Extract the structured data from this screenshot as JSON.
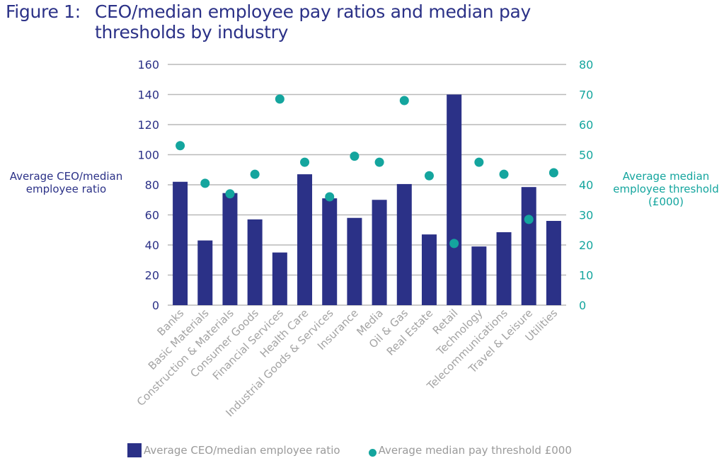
{
  "figure_label": "Figure 1:",
  "title_line1": "CEO/median employee pay ratios and median pay",
  "title_line2": "thresholds by industry",
  "chart_data": {
    "type": "bar+scatter",
    "title": "CEO/median employee pay ratios and median pay thresholds by industry",
    "categories": [
      "Banks",
      "Basic Materials",
      "Construction & Materials",
      "Consumer Goods",
      "Financial Services",
      "Health Care",
      "Industrial Goods & Services",
      "Insurance",
      "Media",
      "Oil & Gas",
      "Real Estate",
      "Retail",
      "Technology",
      "Telecommunications",
      "Travel & Leisure",
      "Utilities"
    ],
    "series": [
      {
        "name": "Average CEO/median employee ratio",
        "type": "bar",
        "axis": "left",
        "color": "#2b3187",
        "values": [
          82,
          43,
          74.5,
          57,
          35,
          87,
          71,
          58,
          70,
          80.5,
          47,
          140,
          39,
          48.5,
          78.5,
          56
        ]
      },
      {
        "name": "Average median pay threshold £000",
        "type": "scatter",
        "axis": "right",
        "color": "#14a59e",
        "values": [
          53,
          40.5,
          37,
          43.5,
          68.5,
          47.5,
          36,
          49.5,
          47.5,
          68,
          43,
          20.5,
          47.5,
          43.5,
          28.5,
          44
        ]
      }
    ],
    "ylabel_left": "Average CEO/median employee ratio",
    "ylabel_right": "Average median employee threshold (£000)",
    "ylabel_right_lines": [
      "Average median",
      "employee threshold",
      "(£000)"
    ],
    "ylabel_left_lines": [
      "Average CEO/median",
      "employee ratio"
    ],
    "ylim_left": [
      0,
      160
    ],
    "ylim_right": [
      0,
      80
    ],
    "yticks_left": [
      "0",
      "20",
      "40",
      "60",
      "80",
      "100",
      "120",
      "140",
      "160"
    ],
    "yticks_right": [
      "0",
      "10",
      "20",
      "30",
      "40",
      "50",
      "60",
      "70",
      "80"
    ],
    "grid": true,
    "legend_position": "bottom",
    "legend": [
      "Average CEO/median employee ratio",
      "Average median pay threshold £000"
    ]
  }
}
